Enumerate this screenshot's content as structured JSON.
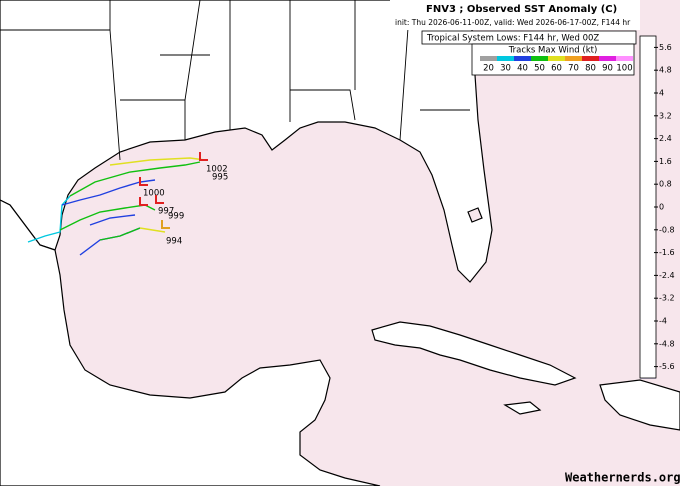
{
  "header": {
    "title": "FNV3 ; Observed SST Anomaly (C)",
    "subtitle": "init: Thu 2026-06-11-00Z, valid: Wed 2026-06-17-00Z, F144 hr",
    "lows_label": "Tropical System Lows: F144 hr, Wed 00Z"
  },
  "wind_legend": {
    "title": "Tracks Max Wind (kt)",
    "entries": [
      {
        "value": 20,
        "color": "#a0a0a0"
      },
      {
        "value": 30,
        "color": "#00c8e0"
      },
      {
        "value": 40,
        "color": "#2040e0"
      },
      {
        "value": 50,
        "color": "#10c010"
      },
      {
        "value": 60,
        "color": "#e0e020"
      },
      {
        "value": 70,
        "color": "#f0a020"
      },
      {
        "value": 80,
        "color": "#e02020"
      },
      {
        "value": 90,
        "color": "#e020e0"
      },
      {
        "value": 100,
        "color": "#ff90ff"
      }
    ]
  },
  "colorbar": {
    "lim": [
      -6,
      6
    ],
    "ticks": [
      5.6,
      4.8,
      4,
      3.2,
      2.4,
      1.6,
      0.8,
      0,
      -0.8,
      -1.6,
      -2.4,
      -3.2,
      -4,
      -4.8,
      -5.6
    ]
  },
  "lows": {
    "pressures": [
      1002,
      995,
      1000,
      999,
      997,
      994
    ]
  },
  "watermark": "Weathernerds.org"
}
